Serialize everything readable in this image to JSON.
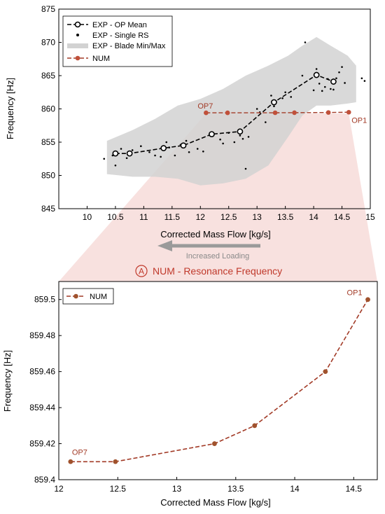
{
  "top_chart": {
    "xlabel": "Corrected Mass Flow [kg/s]",
    "ylabel": "Frequency [Hz]",
    "xlim": [
      9.5,
      15
    ],
    "ylim": [
      845,
      875
    ],
    "xticks": [
      "10",
      "10.5",
      "11",
      "11.5",
      "12",
      "12.5",
      "13",
      "13.5",
      "14",
      "14.5",
      "15"
    ],
    "yticks": [
      "845",
      "850",
      "855",
      "860",
      "865",
      "870",
      "875"
    ],
    "legend": {
      "placement": "top-left",
      "items": [
        "EXP - OP Mean",
        "EXP - Single RS",
        "EXP - Blade Min/Max",
        "NUM"
      ]
    },
    "annotations": {
      "op7": "OP7",
      "op1": "OP1"
    }
  },
  "loading": {
    "label": "Increased Loading"
  },
  "resonance": {
    "badge": "A",
    "title": "NUM - Resonance Frequency"
  },
  "bottom_chart": {
    "xlabel": "Corrected Mass Flow [kg/s]",
    "ylabel": "Frequency [Hz]",
    "xlim": [
      12,
      14.7
    ],
    "ylim": [
      859.4,
      859.51
    ],
    "xticks": [
      "12",
      "12.5",
      "13",
      "13.5",
      "14",
      "14.5"
    ],
    "yticks": [
      "859.4",
      "859.42",
      "859.44",
      "859.46",
      "859.48",
      "859.5"
    ],
    "legend": {
      "placement": "top-left",
      "items": [
        "NUM"
      ]
    },
    "annotations": {
      "op7": "OP7",
      "op1": "OP1"
    }
  },
  "chart_data": [
    {
      "type": "scatter",
      "xlabel": "Corrected Mass Flow [kg/s]",
      "ylabel": "Frequency [Hz]",
      "xlim": [
        9.5,
        15
      ],
      "ylim": [
        845,
        875
      ],
      "grid": false,
      "legend": "top-left",
      "series": [
        {
          "name": "EXP - OP Mean",
          "x": [
            10.5,
            10.75,
            11.35,
            11.7,
            12.2,
            12.7,
            13.3,
            14.05,
            14.35
          ],
          "y": [
            853.3,
            853.3,
            854.1,
            854.5,
            856.2,
            856.6,
            861.0,
            865.1,
            864.1
          ]
        },
        {
          "name": "EXP - Single RS",
          "x": [
            10.3,
            10.45,
            10.5,
            10.6,
            10.7,
            10.8,
            10.95,
            11.1,
            11.2,
            11.3,
            11.4,
            11.45,
            11.55,
            11.65,
            11.75,
            11.8,
            11.95,
            12.05,
            12.2,
            12.35,
            12.4,
            12.5,
            12.6,
            12.7,
            12.75,
            12.8,
            12.85,
            13.0,
            13.05,
            13.15,
            13.25,
            13.3,
            13.45,
            13.5,
            13.6,
            13.8,
            13.85,
            14.0,
            14.05,
            14.1,
            14.15,
            14.2,
            14.25,
            14.3,
            14.35,
            14.4,
            14.45,
            14.5,
            14.55,
            14.85,
            14.9
          ],
          "y": [
            852.5,
            853.0,
            851.5,
            854.0,
            852.6,
            853.8,
            854.4,
            853.5,
            853.0,
            852.8,
            855.0,
            854.2,
            853.0,
            854.6,
            855.2,
            853.5,
            854.0,
            853.6,
            856.0,
            855.4,
            854.8,
            856.4,
            855.0,
            856.0,
            855.5,
            851.0,
            855.8,
            860.0,
            859.5,
            858.0,
            862.0,
            860.4,
            861.6,
            862.5,
            861.8,
            865.0,
            870.0,
            862.8,
            866.0,
            863.8,
            862.7,
            863.3,
            864.5,
            863.0,
            862.9,
            864.6,
            865.5,
            866.3,
            863.9,
            864.6,
            864.2
          ]
        },
        {
          "name": "EXP - Blade Min/Max",
          "fill": "between",
          "x": [
            10.35,
            10.8,
            11.2,
            11.6,
            12.0,
            12.4,
            12.8,
            13.2,
            13.55,
            13.8,
            14.05,
            14.3,
            14.6,
            14.75
          ],
          "y_min": [
            850.2,
            849.8,
            849.8,
            849.5,
            848.5,
            848.8,
            849.5,
            851.5,
            855.8,
            859.0,
            860.5,
            860.5,
            860.8,
            861.0
          ],
          "y_max": [
            855.2,
            856.8,
            858.5,
            860.5,
            861.5,
            863.0,
            865.0,
            866.5,
            868.0,
            869.5,
            870.8,
            869.5,
            868.0,
            866.5
          ]
        },
        {
          "name": "NUM",
          "x": [
            12.1,
            12.48,
            13.32,
            13.66,
            14.26,
            14.62
          ],
          "y": [
            859.41,
            859.41,
            859.42,
            859.43,
            859.46,
            859.5
          ]
        }
      ]
    },
    {
      "type": "line",
      "xlabel": "Corrected Mass Flow [kg/s]",
      "ylabel": "Frequency [Hz]",
      "xlim": [
        12,
        14.7
      ],
      "ylim": [
        859.4,
        859.51
      ],
      "grid": false,
      "legend": "top-left",
      "series": [
        {
          "name": "NUM",
          "x": [
            12.1,
            12.48,
            13.32,
            13.66,
            14.26,
            14.62
          ],
          "y": [
            859.41,
            859.41,
            859.42,
            859.43,
            859.46,
            859.5
          ]
        }
      ]
    }
  ],
  "colors": {
    "num_line": "#a23a26",
    "num_marker": "#c0503a",
    "zoom_band": "#f2c9c5",
    "minmax_fill": "#d2d2d2",
    "arrow": "#9a9a9a",
    "axes": "#000000"
  }
}
